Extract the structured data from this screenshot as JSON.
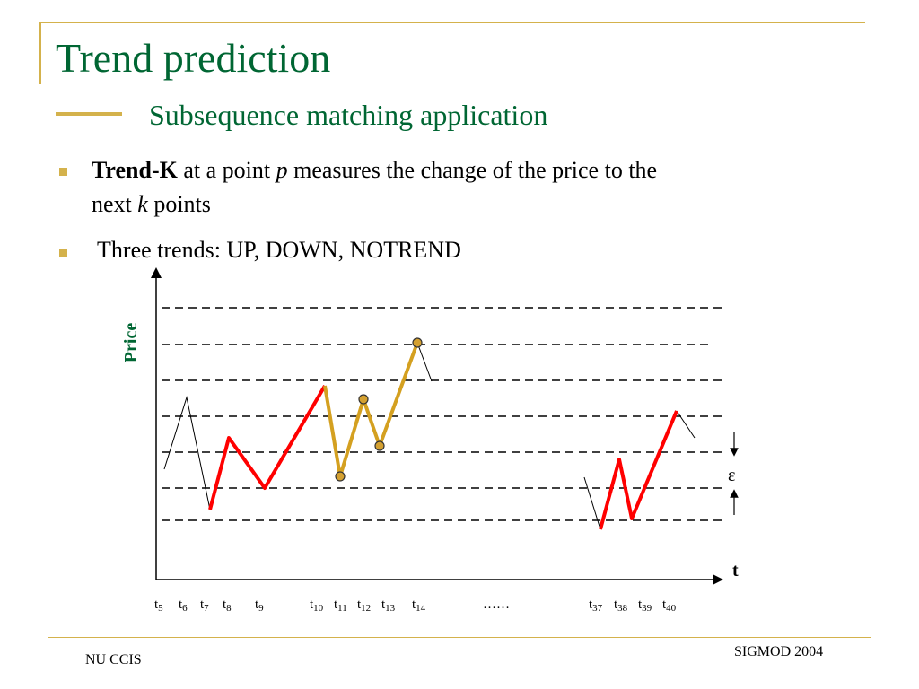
{
  "slide": {
    "title": "Trend prediction",
    "subtitle": "Subsequence matching application",
    "bullets": [
      {
        "bold": "Trend-K",
        "t1": " at a point ",
        "italic1": "p",
        "t2": " measures the change of the price to the",
        "line2_start": "next ",
        "italic2": "k",
        "line2_end": " points"
      },
      {
        "text": " Three trends: UP, DOWN, NOTREND"
      }
    ],
    "footer_left": "NU CCIS",
    "footer_right": "SIGMOD 2004"
  },
  "diagram": {
    "y_axis_label": "Price",
    "x_axis_label": "t",
    "epsilon_label": "ε",
    "ellipsis": "……",
    "time_labels": [
      {
        "base": "t",
        "sub": "5"
      },
      {
        "base": "t",
        "sub": "6"
      },
      {
        "base": "t",
        "sub": "7"
      },
      {
        "base": "t",
        "sub": "8"
      },
      {
        "base": "t",
        "sub": "9"
      },
      {
        "base": "t",
        "sub": "10"
      },
      {
        "base": "t",
        "sub": "11"
      },
      {
        "base": "t",
        "sub": "12"
      },
      {
        "base": "t",
        "sub": "13"
      },
      {
        "base": "t",
        "sub": "14"
      },
      {
        "base": "t",
        "sub": "37"
      },
      {
        "base": "t",
        "sub": "38"
      },
      {
        "base": "t",
        "sub": "39"
      },
      {
        "base": "t",
        "sub": "40"
      }
    ],
    "colors": {
      "red_series": "#ff0000",
      "gold_series": "#d4a020",
      "marker_fill": "#d4a030",
      "title_green": "#006633",
      "accent_gold": "#d4b24c"
    }
  }
}
